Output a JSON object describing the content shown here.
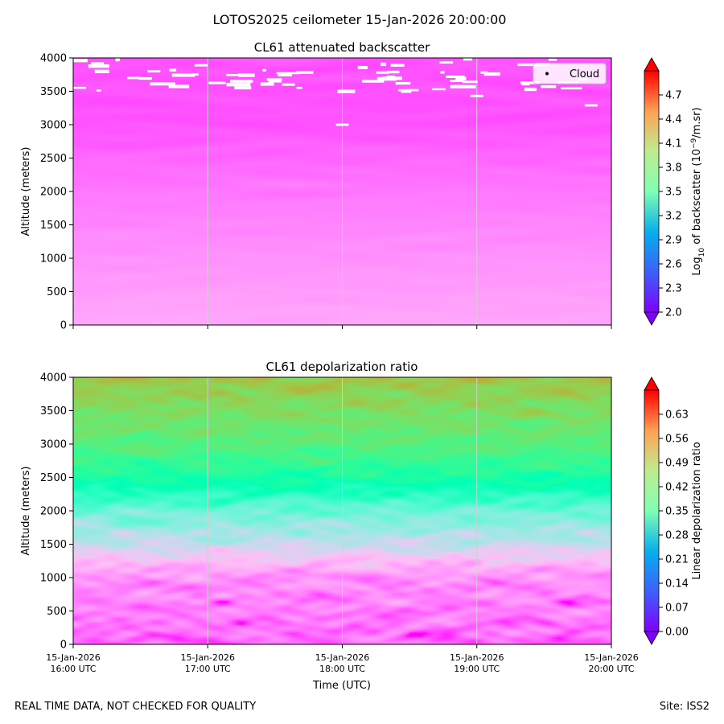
{
  "figure": {
    "title": "LOTOS2025 ceilometer 15-Jan-2026 20:00:00",
    "footer_left": "REAL TIME DATA, NOT CHECKED FOR QUALITY",
    "footer_right": "Site: ISS2"
  },
  "chart_data": [
    {
      "type": "heatmap",
      "title": "CL61 attenuated backscatter",
      "ylabel": "Altitude (meters)",
      "ylim": [
        0,
        4000
      ],
      "yticks": [
        "0",
        "500",
        "1000",
        "1500",
        "2000",
        "2500",
        "3000",
        "3500",
        "4000"
      ],
      "xlim_hours": [
        16,
        20
      ],
      "xtick_hours": [
        16,
        17,
        18,
        19,
        20
      ],
      "colorbar": {
        "label": "Log10 of backscatter (10^-9/m.sr)",
        "label_main": "Log",
        "label_sub": "10",
        "label_mid": " of backscatter (10",
        "label_sup": "−9",
        "label_end": "/m.sr)",
        "range": [
          2.0,
          5.0
        ],
        "ticks": [
          "2.0",
          "2.3",
          "2.6",
          "2.9",
          "3.2",
          "3.5",
          "3.8",
          "4.1",
          "4.4",
          "4.7"
        ],
        "colormap": "rainbow"
      },
      "legend": {
        "label": "Cloud",
        "position": "top-right"
      },
      "field": {
        "surface_value": 2.36,
        "top_value": 2.08,
        "noise": 0.05
      },
      "cloud_points_sample": [
        {
          "hour": 16.18,
          "altitude": 3920
        },
        {
          "hour": 16.45,
          "altitude": 3700
        },
        {
          "hour": 16.6,
          "altitude": 3800
        },
        {
          "hour": 16.95,
          "altitude": 3890
        },
        {
          "hour": 17.5,
          "altitude": 3650
        },
        {
          "hour": 17.6,
          "altitude": 3600
        },
        {
          "hour": 18.0,
          "altitude": 3000
        },
        {
          "hour": 18.3,
          "altitude": 3780
        },
        {
          "hour": 19.0,
          "altitude": 3430
        },
        {
          "hour": 19.85,
          "altitude": 3290
        }
      ]
    },
    {
      "type": "heatmap",
      "title": "CL61 depolarization ratio",
      "ylabel": "Altitude (meters)",
      "xlabel": "Time (UTC)",
      "ylim": [
        0,
        4000
      ],
      "yticks": [
        "0",
        "500",
        "1000",
        "1500",
        "2000",
        "2500",
        "3000",
        "3500",
        "4000"
      ],
      "xlim_hours": [
        16,
        20
      ],
      "xtick_hours": [
        16,
        17,
        18,
        19,
        20
      ],
      "xtick_labels": [
        {
          "date": "15-Jan-2026",
          "time": "16:00 UTC"
        },
        {
          "date": "15-Jan-2026",
          "time": "17:00 UTC"
        },
        {
          "date": "15-Jan-2026",
          "time": "18:00 UTC"
        },
        {
          "date": "15-Jan-2026",
          "time": "19:00 UTC"
        },
        {
          "date": "15-Jan-2026",
          "time": "20:00 UTC"
        }
      ],
      "colorbar": {
        "label": "Linear depolarization ratio",
        "range": [
          0.0,
          0.7
        ],
        "ticks": [
          "0.00",
          "0.07",
          "0.14",
          "0.21",
          "0.28",
          "0.35",
          "0.42",
          "0.49",
          "0.56",
          "0.63"
        ],
        "colormap": "rainbow"
      },
      "field": {
        "profile": [
          {
            "altitude": 0,
            "value": 0.03
          },
          {
            "altitude": 1000,
            "value": 0.06
          },
          {
            "altitude": 1500,
            "value": 0.17
          },
          {
            "altitude": 2000,
            "value": 0.25
          },
          {
            "altitude": 2500,
            "value": 0.38
          },
          {
            "altitude": 3000,
            "value": 0.47
          },
          {
            "altitude": 3500,
            "value": 0.52
          },
          {
            "altitude": 4000,
            "value": 0.57
          }
        ],
        "noise": 0.1
      }
    }
  ],
  "colors": {
    "colormap_low": "#8000ff",
    "colormap_high": "#ff0000",
    "gridline": "#d0d0d0"
  }
}
